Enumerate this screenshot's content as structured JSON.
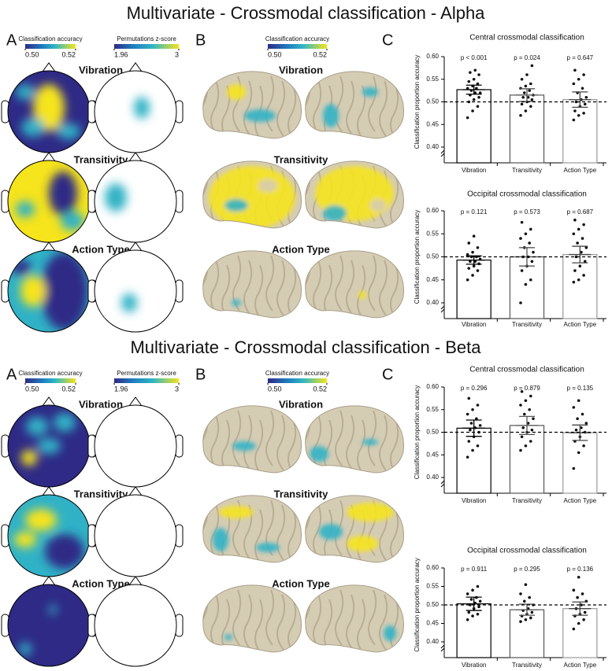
{
  "sections": [
    {
      "title": "Multivariate - Crossmodal classification - Alpha",
      "panels": [
        "A",
        "B",
        "C"
      ],
      "topo_colorbars": [
        {
          "label": "Classification accuracy",
          "ticks": [
            {
              "value": 0.5,
              "label": "0.50"
            },
            {
              "value": 0.52,
              "label": "0.52"
            }
          ]
        },
        {
          "label": "Permutations z-score",
          "ticks": [
            1.96,
            3
          ]
        }
      ],
      "brain_colorbar": {
        "label": "Classification accuracy",
        "ticks": [
          {
            "value": 0.5,
            "label": "0.50"
          },
          {
            "value": 0.52,
            "label": "0.52"
          }
        ]
      },
      "rows": [
        "Vibration",
        "Transitivity",
        "Action Type"
      ]
    },
    {
      "title": "Multivariate - Crossmodal classification - Beta",
      "panels": [
        "A",
        "B",
        "C"
      ],
      "topo_colorbars": [
        {
          "label": "Classification accuracy",
          "ticks": [
            {
              "value": 0.5,
              "label": "0.50"
            },
            {
              "value": 0.52,
              "label": "0.52"
            }
          ]
        },
        {
          "label": "Permutations z-score",
          "ticks": [
            1.96,
            3
          ]
        }
      ],
      "brain_colorbar": {
        "label": "Classification accuracy",
        "ticks": [
          {
            "value": 0.5,
            "label": "0.50"
          },
          {
            "value": 0.52,
            "label": "0.52"
          }
        ]
      },
      "rows": [
        "Vibration",
        "Transitivity",
        "Action Type"
      ]
    }
  ],
  "chart_data": [
    {
      "type": "bar",
      "title": "Central crossmodal classification",
      "y_label": "Classification proportion accuracy",
      "categories": [
        "Vibration",
        "Transitivity",
        "Action Type"
      ],
      "values": [
        0.527,
        0.515,
        0.505
      ],
      "errors": [
        0.01,
        0.014,
        0.017
      ],
      "p_labels": [
        "p < 0.001",
        "p = 0.024",
        "p = 0.647"
      ],
      "colors": [
        "#000000",
        "#555555",
        "#999999"
      ],
      "reference_line": 0.5,
      "points": [
        [
          0.465,
          0.48,
          0.49,
          0.5,
          0.505,
          0.51,
          0.515,
          0.52,
          0.52,
          0.525,
          0.53,
          0.53,
          0.535,
          0.54,
          0.545,
          0.55,
          0.56,
          0.565,
          0.57
        ],
        [
          0.47,
          0.48,
          0.49,
          0.495,
          0.5,
          0.505,
          0.51,
          0.51,
          0.515,
          0.52,
          0.525,
          0.53,
          0.535,
          0.54,
          0.55,
          0.56,
          0.58
        ],
        [
          0.46,
          0.47,
          0.475,
          0.48,
          0.49,
          0.495,
          0.5,
          0.505,
          0.51,
          0.52,
          0.53,
          0.54,
          0.55,
          0.56,
          0.57
        ]
      ],
      "ylim": [
        0.4,
        0.6
      ],
      "yticks": [
        {
          "value": 0.4,
          "label": "0.40"
        },
        {
          "value": 0.45,
          "label": "0.45"
        },
        {
          "value": 0.5,
          "label": "0.50"
        },
        {
          "value": 0.55,
          "label": "0.55"
        },
        {
          "value": 0.6,
          "label": "0.60"
        }
      ]
    },
    {
      "type": "bar",
      "title": "Occipital crossmodal classification",
      "y_label": "Classification proportion accuracy",
      "categories": [
        "Vibration",
        "Transitivity",
        "Action Type"
      ],
      "values": [
        0.493,
        0.5,
        0.505
      ],
      "errors": [
        0.009,
        0.02,
        0.018
      ],
      "p_labels": [
        "p = 0.121",
        "p = 0.573",
        "p = 0.687"
      ],
      "colors": [
        "#000000",
        "#555555",
        "#999999"
      ],
      "reference_line": 0.5,
      "points": [
        [
          0.45,
          0.46,
          0.47,
          0.475,
          0.48,
          0.485,
          0.49,
          0.49,
          0.495,
          0.5,
          0.5,
          0.505,
          0.51,
          0.52,
          0.53,
          0.545
        ],
        [
          0.4,
          0.44,
          0.45,
          0.47,
          0.48,
          0.49,
          0.5,
          0.5,
          0.51,
          0.52,
          0.53,
          0.54,
          0.55,
          0.56,
          0.575
        ],
        [
          0.445,
          0.45,
          0.46,
          0.47,
          0.48,
          0.49,
          0.5,
          0.51,
          0.52,
          0.53,
          0.54,
          0.55,
          0.56,
          0.57,
          0.58
        ]
      ],
      "ylim": [
        0.4,
        0.6
      ],
      "yticks": [
        {
          "value": 0.4,
          "label": "0.40"
        },
        {
          "value": 0.45,
          "label": "0.45"
        },
        {
          "value": 0.5,
          "label": "0.50"
        },
        {
          "value": 0.55,
          "label": "0.55"
        },
        {
          "value": 0.6,
          "label": "0.60"
        }
      ]
    },
    {
      "type": "bar",
      "title": "Central crossmodal classification",
      "y_label": "Classification proportion accuracy",
      "categories": [
        "Vibration",
        "Transitivity",
        "Action Type"
      ],
      "values": [
        0.509,
        0.515,
        0.499
      ],
      "errors": [
        0.018,
        0.02,
        0.017
      ],
      "p_labels": [
        "p = 0.296",
        "p = 0.879",
        "p = 0.135"
      ],
      "colors": [
        "#000000",
        "#555555",
        "#999999"
      ],
      "reference_line": 0.5,
      "points": [
        [
          0.445,
          0.46,
          0.47,
          0.48,
          0.49,
          0.5,
          0.505,
          0.51,
          0.515,
          0.52,
          0.53,
          0.54,
          0.55,
          0.56,
          0.575
        ],
        [
          0.46,
          0.47,
          0.48,
          0.49,
          0.5,
          0.505,
          0.51,
          0.52,
          0.53,
          0.54,
          0.55,
          0.56,
          0.57,
          0.58,
          0.59
        ],
        [
          0.42,
          0.455,
          0.47,
          0.48,
          0.49,
          0.5,
          0.505,
          0.51,
          0.52,
          0.53,
          0.54,
          0.555,
          0.57
        ]
      ],
      "ylim": [
        0.4,
        0.6
      ],
      "yticks": [
        {
          "value": 0.4,
          "label": "0.40"
        },
        {
          "value": 0.45,
          "label": "0.45"
        },
        {
          "value": 0.5,
          "label": "0.50"
        },
        {
          "value": 0.55,
          "label": "0.55"
        },
        {
          "value": 0.6,
          "label": "0.60"
        }
      ]
    },
    {
      "type": "bar",
      "title": "Occipital crossmodal classification",
      "y_label": "Classification proportion accuracy",
      "categories": [
        "Vibration",
        "Transitivity",
        "Action Type"
      ],
      "values": [
        0.503,
        0.487,
        0.49
      ],
      "errors": [
        0.018,
        0.015,
        0.018
      ],
      "p_labels": [
        "p = 0.911",
        "p = 0.295",
        "p = 0.136"
      ],
      "colors": [
        "#000000",
        "#555555",
        "#999999"
      ],
      "reference_line": 0.5,
      "points": [
        [
          0.46,
          0.47,
          0.475,
          0.48,
          0.49,
          0.495,
          0.5,
          0.505,
          0.51,
          0.515,
          0.52,
          0.53,
          0.54,
          0.55
        ],
        [
          0.455,
          0.46,
          0.465,
          0.47,
          0.475,
          0.48,
          0.485,
          0.49,
          0.5,
          0.51,
          0.52,
          0.53,
          0.555
        ],
        [
          0.435,
          0.45,
          0.46,
          0.47,
          0.475,
          0.48,
          0.49,
          0.5,
          0.51,
          0.52,
          0.53,
          0.54,
          0.575
        ]
      ],
      "ylim": [
        0.4,
        0.6
      ],
      "yticks": [
        {
          "value": 0.4,
          "label": "0.40"
        },
        {
          "value": 0.45,
          "label": "0.45"
        },
        {
          "value": 0.5,
          "label": "0.50"
        },
        {
          "value": 0.55,
          "label": "0.55"
        },
        {
          "value": 0.6,
          "label": "0.60"
        }
      ]
    }
  ]
}
